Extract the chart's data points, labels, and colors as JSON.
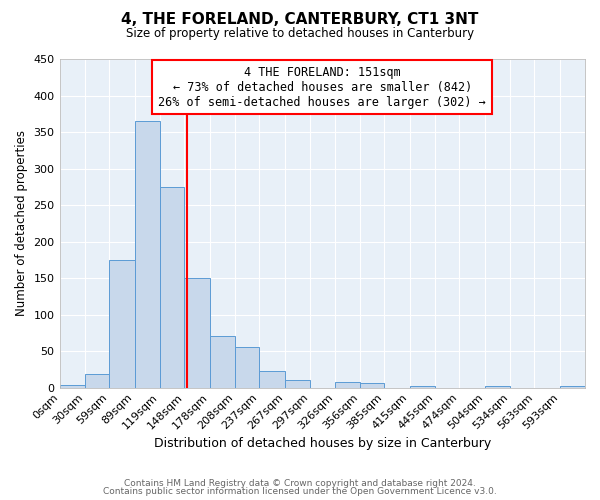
{
  "title": "4, THE FORELAND, CANTERBURY, CT1 3NT",
  "subtitle": "Size of property relative to detached houses in Canterbury",
  "xlabel": "Distribution of detached houses by size in Canterbury",
  "ylabel": "Number of detached properties",
  "bar_color": "#c8d8eb",
  "bar_edge_color": "#5b9bd5",
  "background_color": "#e8f0f8",
  "grid_color": "#ffffff",
  "fig_background": "#ffffff",
  "marker_value": 151,
  "annotation_title": "4 THE FORELAND: 151sqm",
  "annotation_line1": "← 73% of detached houses are smaller (842)",
  "annotation_line2": "26% of semi-detached houses are larger (302) →",
  "ylim": [
    0,
    450
  ],
  "footnote1": "Contains HM Land Registry data © Crown copyright and database right 2024.",
  "footnote2": "Contains public sector information licensed under the Open Government Licence v3.0.",
  "bin_edges": [
    0,
    30,
    59,
    89,
    119,
    148,
    178,
    208,
    237,
    267,
    297,
    326,
    356,
    385,
    415,
    445,
    474,
    504,
    534,
    563,
    593,
    623
  ],
  "bin_heights": [
    3,
    18,
    175,
    365,
    275,
    150,
    70,
    55,
    23,
    10,
    0,
    7,
    6,
    0,
    2,
    0,
    0,
    2,
    0,
    0,
    2
  ],
  "tick_labels": [
    "0sqm",
    "30sqm",
    "59sqm",
    "89sqm",
    "119sqm",
    "148sqm",
    "178sqm",
    "208sqm",
    "237sqm",
    "267sqm",
    "297sqm",
    "326sqm",
    "356sqm",
    "385sqm",
    "415sqm",
    "445sqm",
    "474sqm",
    "504sqm",
    "534sqm",
    "563sqm",
    "593sqm"
  ],
  "yticks": [
    0,
    50,
    100,
    150,
    200,
    250,
    300,
    350,
    400,
    450
  ]
}
